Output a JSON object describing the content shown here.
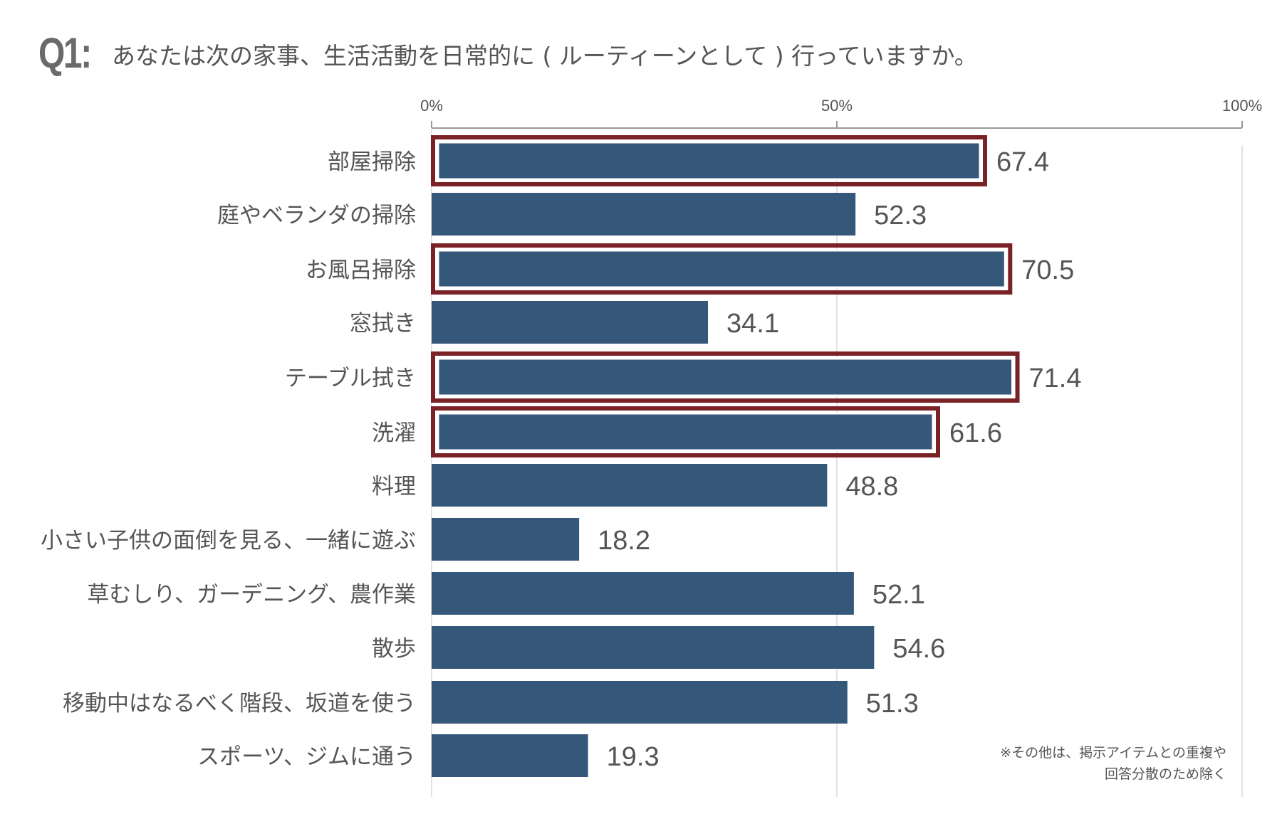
{
  "question": {
    "number": "Q1:",
    "text": "あなたは次の家事、生活活動を日常的に ( ルーティーンとして ) 行っていますか。"
  },
  "note": {
    "line1": "※その他は、掲示アイテムとの重複や",
    "line2": "回答分散のため除く"
  },
  "colors": {
    "bar": "#35577a",
    "highlight": "#7b2226",
    "grid": "#d9d9d9",
    "axis": "#999999",
    "label": "#555555"
  },
  "chart_data": {
    "type": "bar",
    "orientation": "horizontal",
    "xlim": [
      0,
      100
    ],
    "ticks": [
      {
        "value": 0,
        "label": "0%"
      },
      {
        "value": 50,
        "label": "50%"
      },
      {
        "value": 100,
        "label": "100%"
      }
    ],
    "categories": [
      "部屋掃除",
      "庭やベランダの掃除",
      "お風呂掃除",
      "窓拭き",
      "テーブル拭き",
      "洗濯",
      "料理",
      "小さい子供の面倒を見る、一緒に遊ぶ",
      "草むしり、ガーデニング、農作業",
      "散歩",
      "移動中はなるべく階段、坂道を使う",
      "スポーツ、ジムに通う"
    ],
    "values": [
      67.4,
      52.3,
      70.5,
      34.1,
      71.4,
      61.6,
      48.8,
      18.2,
      52.1,
      54.6,
      51.3,
      19.3
    ],
    "value_labels": [
      "67.4",
      "52.3",
      "70.5",
      "34.1",
      "71.4",
      "61.6",
      "48.8",
      "18.2",
      "52.1",
      "54.6",
      "51.3",
      "19.3"
    ],
    "highlighted": [
      true,
      false,
      true,
      false,
      true,
      true,
      false,
      false,
      false,
      false,
      false,
      false
    ],
    "grid": true
  }
}
